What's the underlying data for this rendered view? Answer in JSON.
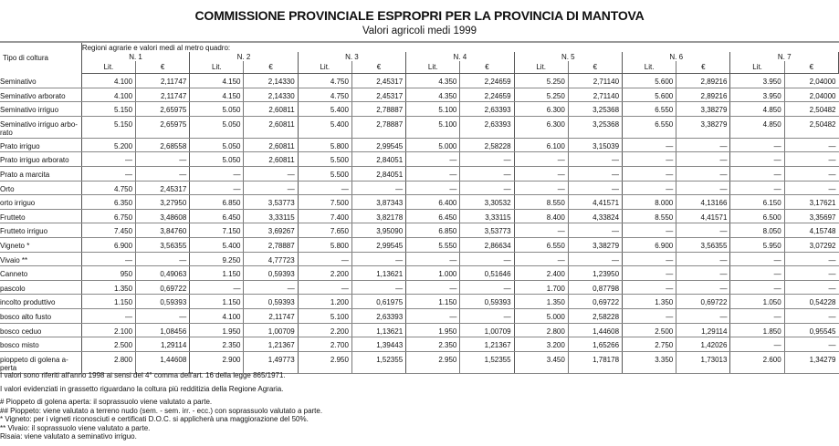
{
  "title": "COMMISSIONE PROVINCIALE ESPROPRI PER LA PROVINCIA DI MANTOVA",
  "subtitle": "Valori agricoli medi 1999",
  "table": {
    "first_header": "Tipo di coltura",
    "region_header": "Regioni agrarie e valori medi al metro quadro:",
    "groups": [
      "N. 1",
      "N. 2",
      "N. 3",
      "N. 4",
      "N. 5",
      "N. 6",
      "N. 7"
    ],
    "lit_label": "Lit.",
    "eur_label": "€",
    "rows": [
      {
        "name": "Seminativo",
        "values": [
          "4.100",
          "2,11747",
          "4.150",
          "2,14330",
          "4.750",
          "2,45317",
          "4.350",
          "2,24659",
          "5.250",
          "2,71140",
          "5.600",
          "2,89216",
          "3.950",
          "2,04000"
        ]
      },
      {
        "name": "Seminativo arborato",
        "values": [
          "4.100",
          "2,11747",
          "4.150",
          "2,14330",
          "4.750",
          "2,45317",
          "4.350",
          "2,24659",
          "5.250",
          "2,71140",
          "5.600",
          "2,89216",
          "3.950",
          "2,04000"
        ]
      },
      {
        "name": "Seminativo irriguo",
        "values": [
          "5.150",
          "2,65975",
          "5.050",
          "2,60811",
          "5.400",
          "2,78887",
          "5.100",
          "2,63393",
          "6.300",
          "3,25368",
          "6.550",
          "3,38279",
          "4.850",
          "2,50482"
        ]
      },
      {
        "name": "Seminativo irriguo arbo-rato",
        "values": [
          "5.150",
          "2,65975",
          "5.050",
          "2,60811",
          "5.400",
          "2,78887",
          "5.100",
          "2,63393",
          "6.300",
          "3,25368",
          "6.550",
          "3,38279",
          "4.850",
          "2,50482"
        ],
        "double": true
      },
      {
        "name": "Prato irriguo",
        "values": [
          "5.200",
          "2,68558",
          "5.050",
          "2,60811",
          "5.800",
          "2,99545",
          "5.000",
          "2,58228",
          "6.100",
          "3,15039",
          "—",
          "—",
          "—",
          "—"
        ]
      },
      {
        "name": "Prato irriguo arborato",
        "values": [
          "—",
          "—",
          "5.050",
          "2,60811",
          "5.500",
          "2,84051",
          "—",
          "—",
          "—",
          "—",
          "—",
          "—",
          "—",
          "—"
        ]
      },
      {
        "name": "Prato a marcita",
        "values": [
          "—",
          "—",
          "—",
          "—",
          "5.500",
          "2,84051",
          "—",
          "—",
          "—",
          "—",
          "—",
          "—",
          "—",
          "—"
        ]
      },
      {
        "name": "Orto",
        "values": [
          "4.750",
          "2,45317",
          "—",
          "—",
          "—",
          "—",
          "—",
          "—",
          "—",
          "—",
          "—",
          "—",
          "—",
          "—"
        ]
      },
      {
        "name": "orto irriguo",
        "values": [
          "6.350",
          "3,27950",
          "6.850",
          "3,53773",
          "7.500",
          "3,87343",
          "6.400",
          "3,30532",
          "8.550",
          "4,41571",
          "8.000",
          "4,13166",
          "6.150",
          "3,17621"
        ]
      },
      {
        "name": "Frutteto",
        "values": [
          "6.750",
          "3,48608",
          "6.450",
          "3,33115",
          "7.400",
          "3,82178",
          "6.450",
          "3,33115",
          "8.400",
          "4,33824",
          "8.550",
          "4,41571",
          "6.500",
          "3,35697"
        ]
      },
      {
        "name": "Frutteto irriguo",
        "values": [
          "7.450",
          "3,84760",
          "7.150",
          "3,69267",
          "7.650",
          "3,95090",
          "6.850",
          "3,53773",
          "—",
          "—",
          "—",
          "—",
          "8.050",
          "4,15748"
        ]
      },
      {
        "name": "Vigneto *",
        "values": [
          "6.900",
          "3,56355",
          "5.400",
          "2,78887",
          "5.800",
          "2,99545",
          "5.550",
          "2,86634",
          "6.550",
          "3,38279",
          "6.900",
          "3,56355",
          "5.950",
          "3,07292"
        ]
      },
      {
        "name": "Vivaio **",
        "values": [
          "—",
          "—",
          "9.250",
          "4,77723",
          "—",
          "—",
          "—",
          "—",
          "—",
          "—",
          "—",
          "—",
          "—",
          "—"
        ]
      },
      {
        "name": "Canneto",
        "values": [
          "950",
          "0,49063",
          "1.150",
          "0,59393",
          "2.200",
          "1,13621",
          "1.000",
          "0,51646",
          "2.400",
          "1,23950",
          "—",
          "—",
          "—",
          "—"
        ]
      },
      {
        "name": "pascolo",
        "values": [
          "1.350",
          "0,69722",
          "—",
          "—",
          "—",
          "—",
          "—",
          "—",
          "1.700",
          "0,87798",
          "—",
          "—",
          "—",
          "—"
        ]
      },
      {
        "name": "incolto produttivo",
        "values": [
          "1.150",
          "0,59393",
          "1.150",
          "0,59393",
          "1.200",
          "0,61975",
          "1.150",
          "0,59393",
          "1.350",
          "0,69722",
          "1.350",
          "0,69722",
          "1.050",
          "0,54228"
        ]
      },
      {
        "name": "bosco alto fusto",
        "values": [
          "—",
          "—",
          "4.100",
          "2,11747",
          "5.100",
          "2,63393",
          "—",
          "—",
          "5.000",
          "2,58228",
          "—",
          "—",
          "—",
          "—"
        ]
      },
      {
        "name": "bosco ceduo",
        "values": [
          "2.100",
          "1,08456",
          "1.950",
          "1,00709",
          "2.200",
          "1,13621",
          "1.950",
          "1,00709",
          "2.800",
          "1,44608",
          "2.500",
          "1,29114",
          "1.850",
          "0,95545"
        ]
      },
      {
        "name": "bosco misto",
        "values": [
          "2.500",
          "1,29114",
          "2.350",
          "1,21367",
          "2.700",
          "1,39443",
          "2.350",
          "1,21367",
          "3.200",
          "1,65266",
          "2.750",
          "1,42026",
          "—",
          "—"
        ]
      },
      {
        "name": "pioppeto di golena a-perta",
        "values": [
          "2.800",
          "1,44608",
          "2.900",
          "1,49773",
          "2.950",
          "1,52355",
          "2.950",
          "1,52355",
          "3.450",
          "1,78178",
          "3.350",
          "1,73013",
          "2.600",
          "1,34279"
        ],
        "double": true
      }
    ]
  },
  "notes": [
    "I valori sono riferiti all'anno 1998 ai sensi del 4° comma dell'art. 16 della legge 865/1971.",
    "I valori evidenziati in grassetto riguardano la coltura più redditizia della Regione Agraria.",
    "# Pioppeto di golena aperta: il soprassuolo viene valutato a parte.",
    "## Pioppeto: viene valutato a terreno nudo (sem. - sem. irr. - ecc.) con soprassuolo valutato a parte.",
    "* Vigneto: per i vigneti riconosciuti e certificati D.O.C. si applicherà una maggiorazione del 50%.",
    "** Vivaio: il soprassuolo viene valutato a parte.",
    "Risaia: viene valutato a seminativo irriguo."
  ]
}
